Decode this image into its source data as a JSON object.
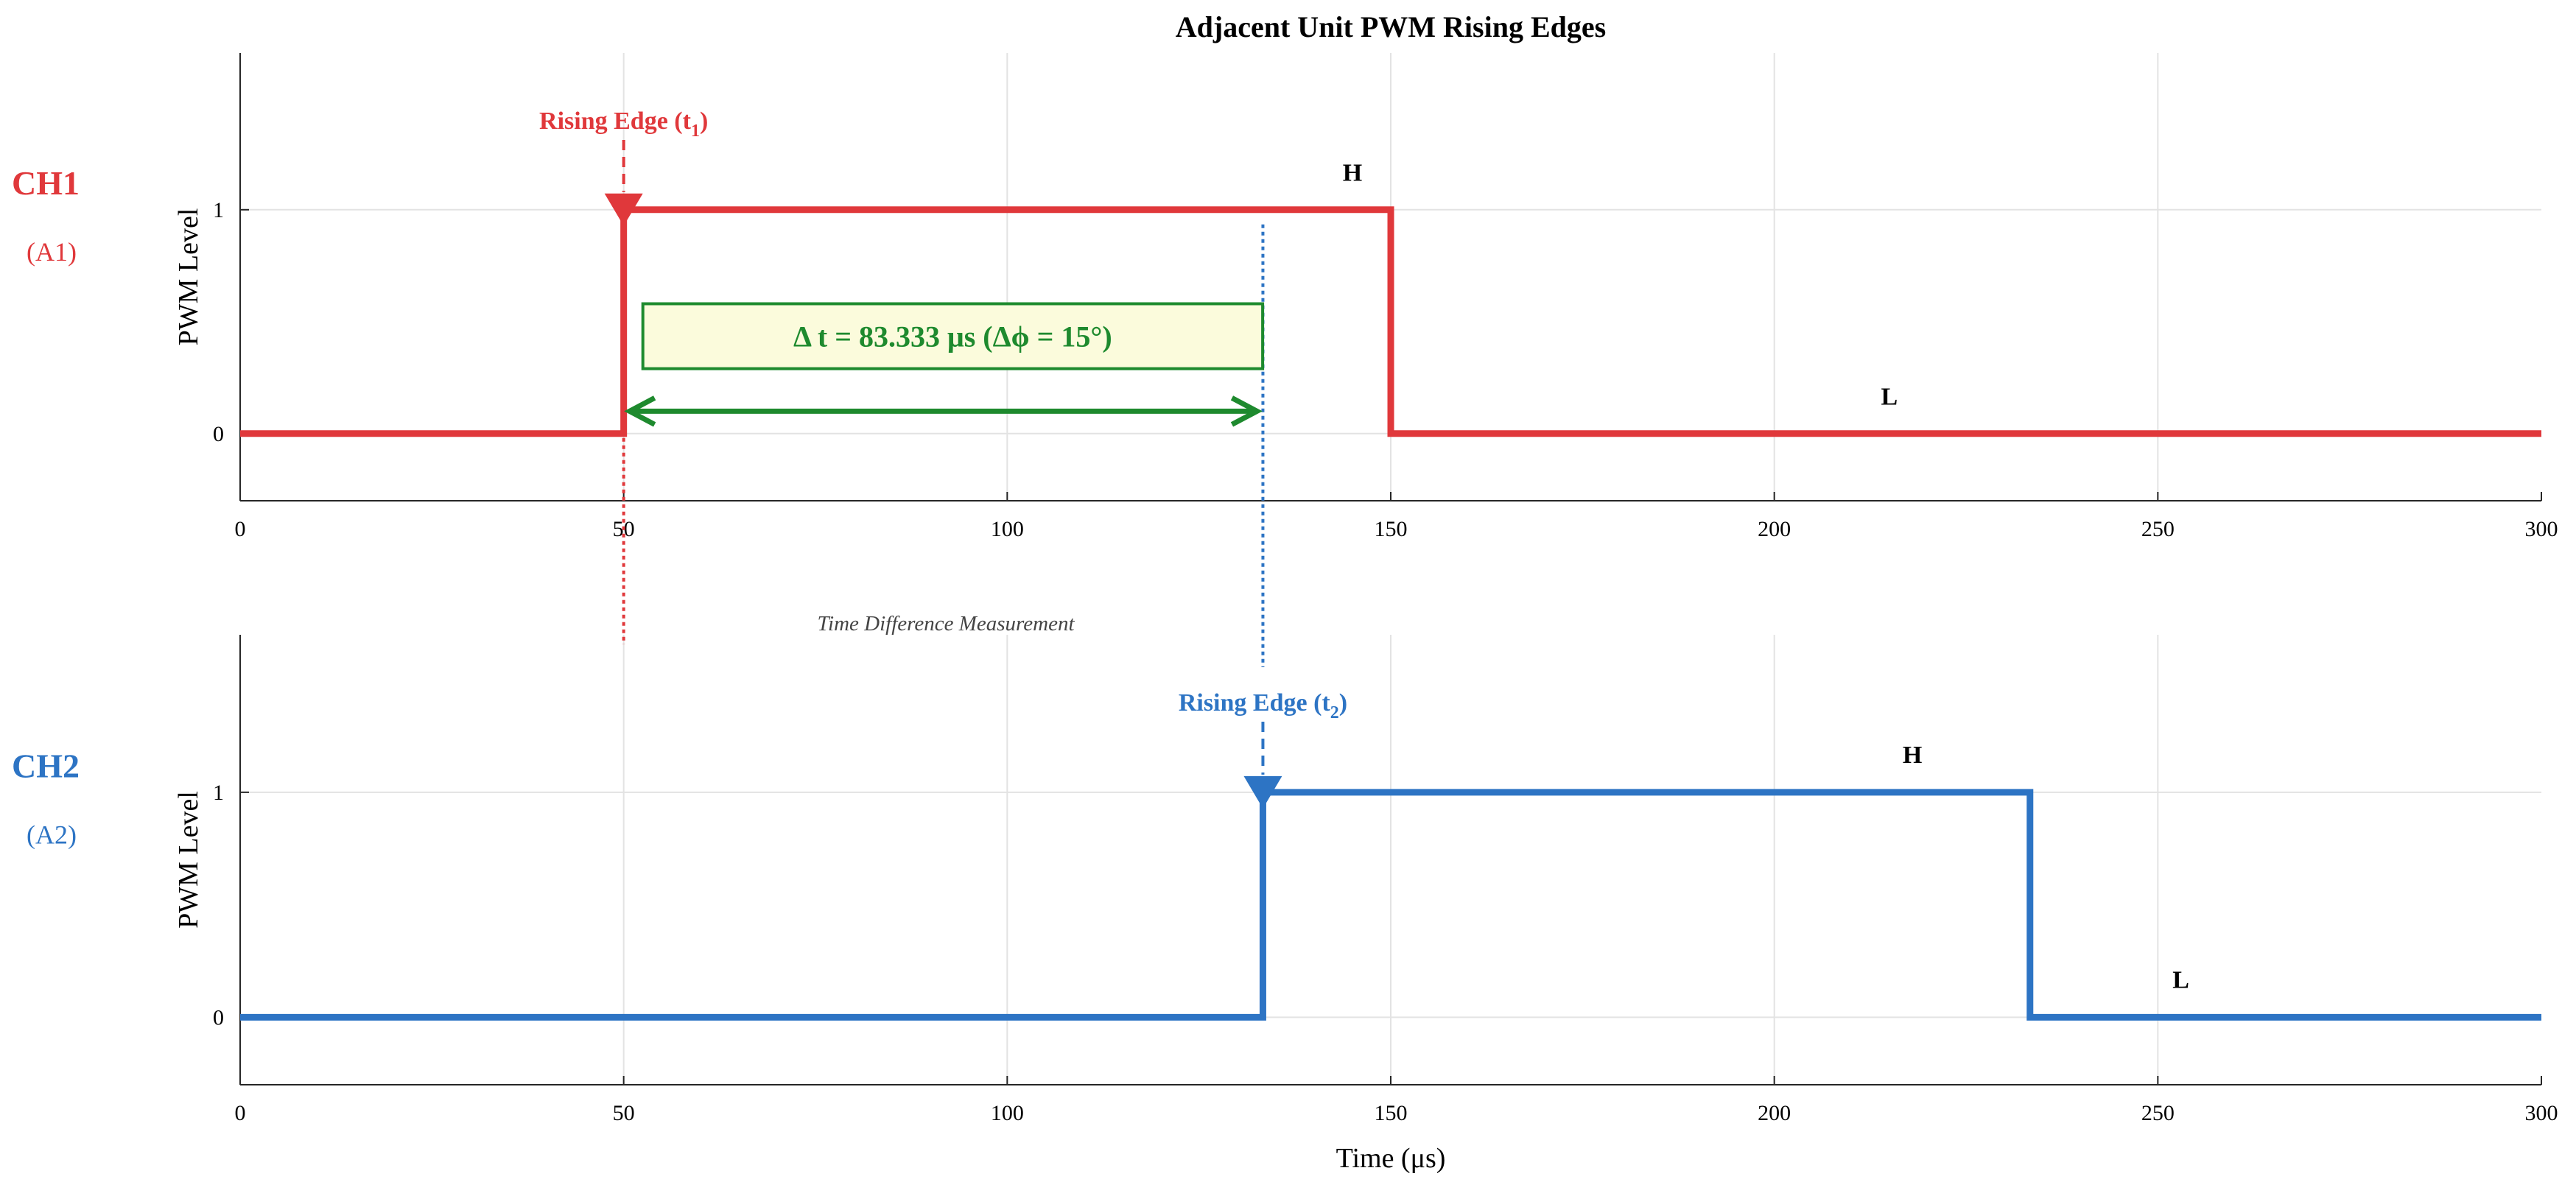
{
  "chart_data": {
    "type": "line",
    "title": "Adjacent Unit PWM Rising Edges",
    "xlabel": "Time (μs)",
    "xlim": [
      0,
      300
    ],
    "x_ticks": [
      "0",
      "50",
      "100",
      "150",
      "200",
      "250",
      "300"
    ],
    "grid": true,
    "panels": [
      {
        "channel": "CH1",
        "sub_label": "(A1)",
        "color": "#e0383b",
        "ylabel": "PWM Level",
        "ylim": [
          -0.3,
          1.7
        ],
        "y_ticks": [
          "0",
          "1"
        ],
        "series": [
          {
            "x": [
              0,
              50,
              50,
              150,
              150,
              300
            ],
            "y": [
              0,
              0,
              1,
              1,
              0,
              0
            ]
          }
        ],
        "rising_edge": {
          "label": "Rising Edge (t",
          "subscript": "1",
          "suffix": ")",
          "x": 50
        },
        "high_label": {
          "text": "H",
          "x": 145,
          "y": 1.13
        },
        "low_label": {
          "text": "L",
          "x": 215,
          "y": 0.13
        }
      },
      {
        "channel": "CH2",
        "sub_label": "(A2)",
        "color": "#2d74c4",
        "ylabel": "PWM Level",
        "ylim": [
          -0.3,
          1.7
        ],
        "y_ticks": [
          "0",
          "1"
        ],
        "series": [
          {
            "x": [
              0,
              133.333,
              133.333,
              233.333,
              233.333,
              300
            ],
            "y": [
              0,
              0,
              1,
              1,
              0,
              0
            ]
          }
        ],
        "rising_edge": {
          "label": "Rising Edge (t",
          "subscript": "2",
          "suffix": ")",
          "x": 133.333
        },
        "high_label": {
          "text": "H",
          "x": 218,
          "y": 1.13
        },
        "low_label": {
          "text": "L",
          "x": 253,
          "y": 0.13
        }
      }
    ],
    "annotations": {
      "measurement_label": "Time Difference Measurement",
      "delta_text": "Δ t = 83.333 μs (Δϕ = 15°)",
      "delta_t_us": 83.333,
      "delta_phi_deg": 15,
      "delta_color": "#1e8a2e",
      "delta_box_fill": "#fbfbdc"
    }
  }
}
